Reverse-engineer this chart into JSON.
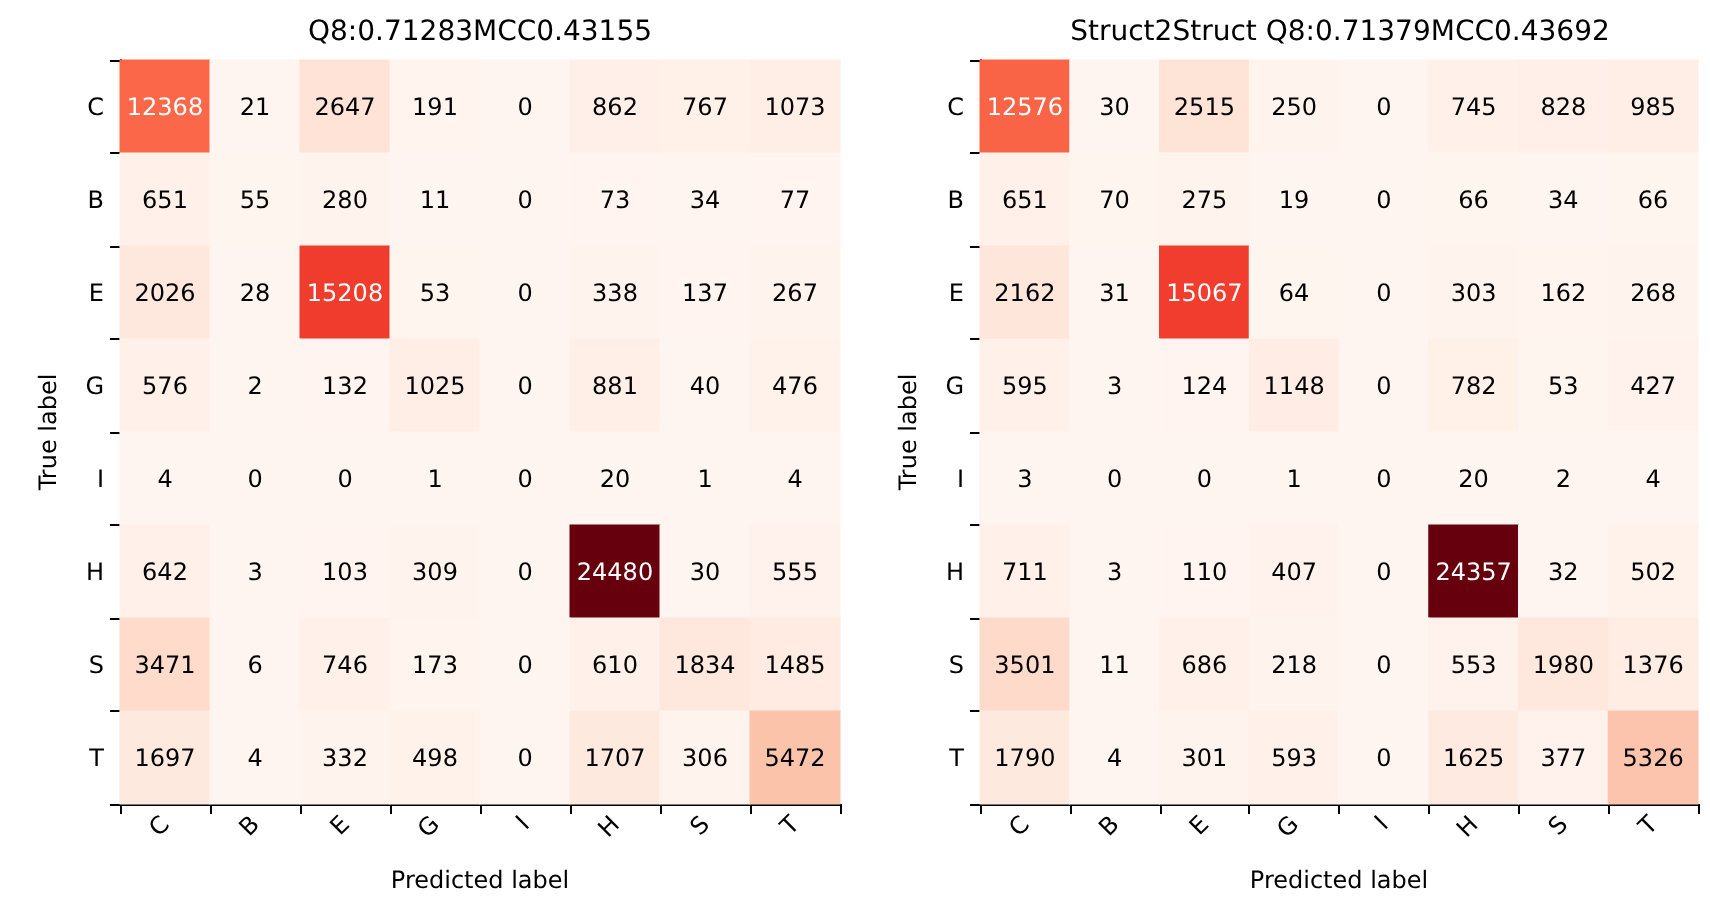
{
  "chart_data": [
    {
      "type": "heatmap",
      "title": "Q8:0.71283MCC0.43155",
      "xlabel": "Predicted label",
      "ylabel": "True label",
      "categories": [
        "C",
        "B",
        "E",
        "G",
        "I",
        "H",
        "S",
        "T"
      ],
      "y_categories": [
        "C",
        "B",
        "E",
        "G",
        "I",
        "H",
        "S",
        "T"
      ],
      "cells": [
        [
          12368,
          21,
          2647,
          191,
          0,
          862,
          767,
          1073
        ],
        [
          651,
          55,
          280,
          11,
          0,
          73,
          34,
          77
        ],
        [
          2026,
          28,
          15208,
          53,
          0,
          338,
          137,
          267
        ],
        [
          576,
          2,
          132,
          1025,
          0,
          881,
          40,
          476
        ],
        [
          4,
          0,
          0,
          1,
          0,
          20,
          1,
          4
        ],
        [
          642,
          3,
          103,
          309,
          0,
          24480,
          30,
          555
        ],
        [
          3471,
          6,
          746,
          173,
          0,
          610,
          1834,
          1485
        ],
        [
          1697,
          4,
          332,
          498,
          0,
          1707,
          306,
          5472
        ]
      ],
      "data_labels": true,
      "grid": false
    },
    {
      "type": "heatmap",
      "title": "Struct2Struct Q8:0.71379MCC0.43692",
      "xlabel": "Predicted label",
      "ylabel": "True label",
      "categories": [
        "C",
        "B",
        "E",
        "G",
        "I",
        "H",
        "S",
        "T"
      ],
      "y_categories": [
        "C",
        "B",
        "E",
        "G",
        "I",
        "H",
        "S",
        "T"
      ],
      "cells": [
        [
          12576,
          30,
          2515,
          250,
          0,
          745,
          828,
          985
        ],
        [
          651,
          70,
          275,
          19,
          0,
          66,
          34,
          66
        ],
        [
          2162,
          31,
          15067,
          64,
          0,
          303,
          162,
          268
        ],
        [
          595,
          3,
          124,
          1148,
          0,
          782,
          53,
          427
        ],
        [
          3,
          0,
          0,
          1,
          0,
          20,
          2,
          4
        ],
        [
          711,
          3,
          110,
          407,
          0,
          24357,
          32,
          502
        ],
        [
          3501,
          11,
          686,
          218,
          0,
          553,
          1980,
          1376
        ],
        [
          1790,
          4,
          301,
          593,
          0,
          1625,
          377,
          5326
        ]
      ],
      "data_labels": true,
      "grid": false
    }
  ]
}
